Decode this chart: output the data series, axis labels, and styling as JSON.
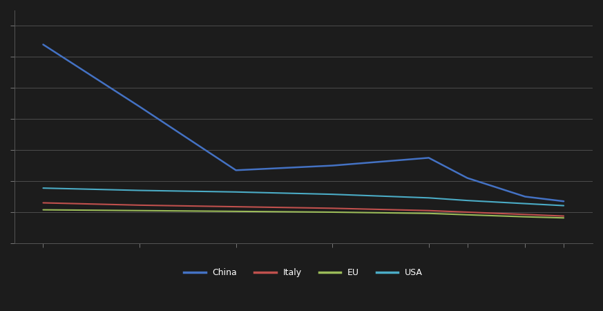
{
  "series": {
    "China": {
      "x": [
        1990,
        1995,
        2000,
        2005,
        2010,
        2012,
        2015,
        2017
      ],
      "y": [
        1.28,
        0.88,
        0.47,
        0.5,
        0.55,
        0.42,
        0.3,
        0.27
      ],
      "color": "#4472C4",
      "linewidth": 1.8
    },
    "Italy": {
      "x": [
        1990,
        1995,
        2000,
        2005,
        2010,
        2012,
        2015,
        2017
      ],
      "y": [
        0.26,
        0.245,
        0.235,
        0.225,
        0.21,
        0.2,
        0.185,
        0.175
      ],
      "color": "#C0504D",
      "linewidth": 1.5
    },
    "EU": {
      "x": [
        1990,
        1995,
        2000,
        2005,
        2010,
        2012,
        2015,
        2017
      ],
      "y": [
        0.215,
        0.21,
        0.205,
        0.2,
        0.192,
        0.183,
        0.17,
        0.163
      ],
      "color": "#9BBB59",
      "linewidth": 1.5
    },
    "USA": {
      "x": [
        1990,
        1995,
        2000,
        2005,
        2010,
        2012,
        2015,
        2017
      ],
      "y": [
        0.355,
        0.34,
        0.33,
        0.315,
        0.292,
        0.275,
        0.255,
        0.242
      ],
      "color": "#4BACC6",
      "linewidth": 1.5
    }
  },
  "xlim": [
    1988.5,
    2018.5
  ],
  "ylim": [
    0.0,
    1.5
  ],
  "ytick_count": 8,
  "xticks": [
    1990,
    1995,
    2000,
    2005,
    2010,
    2012,
    2015,
    2017
  ],
  "background_color": "#1C1C1C",
  "plot_bg_color": "#1C1C1C",
  "grid_color": "#555555",
  "tick_color": "#777777",
  "spine_color": "#555555",
  "legend_order": [
    "China",
    "Italy",
    "EU",
    "USA"
  ],
  "legend_ncol": 4
}
